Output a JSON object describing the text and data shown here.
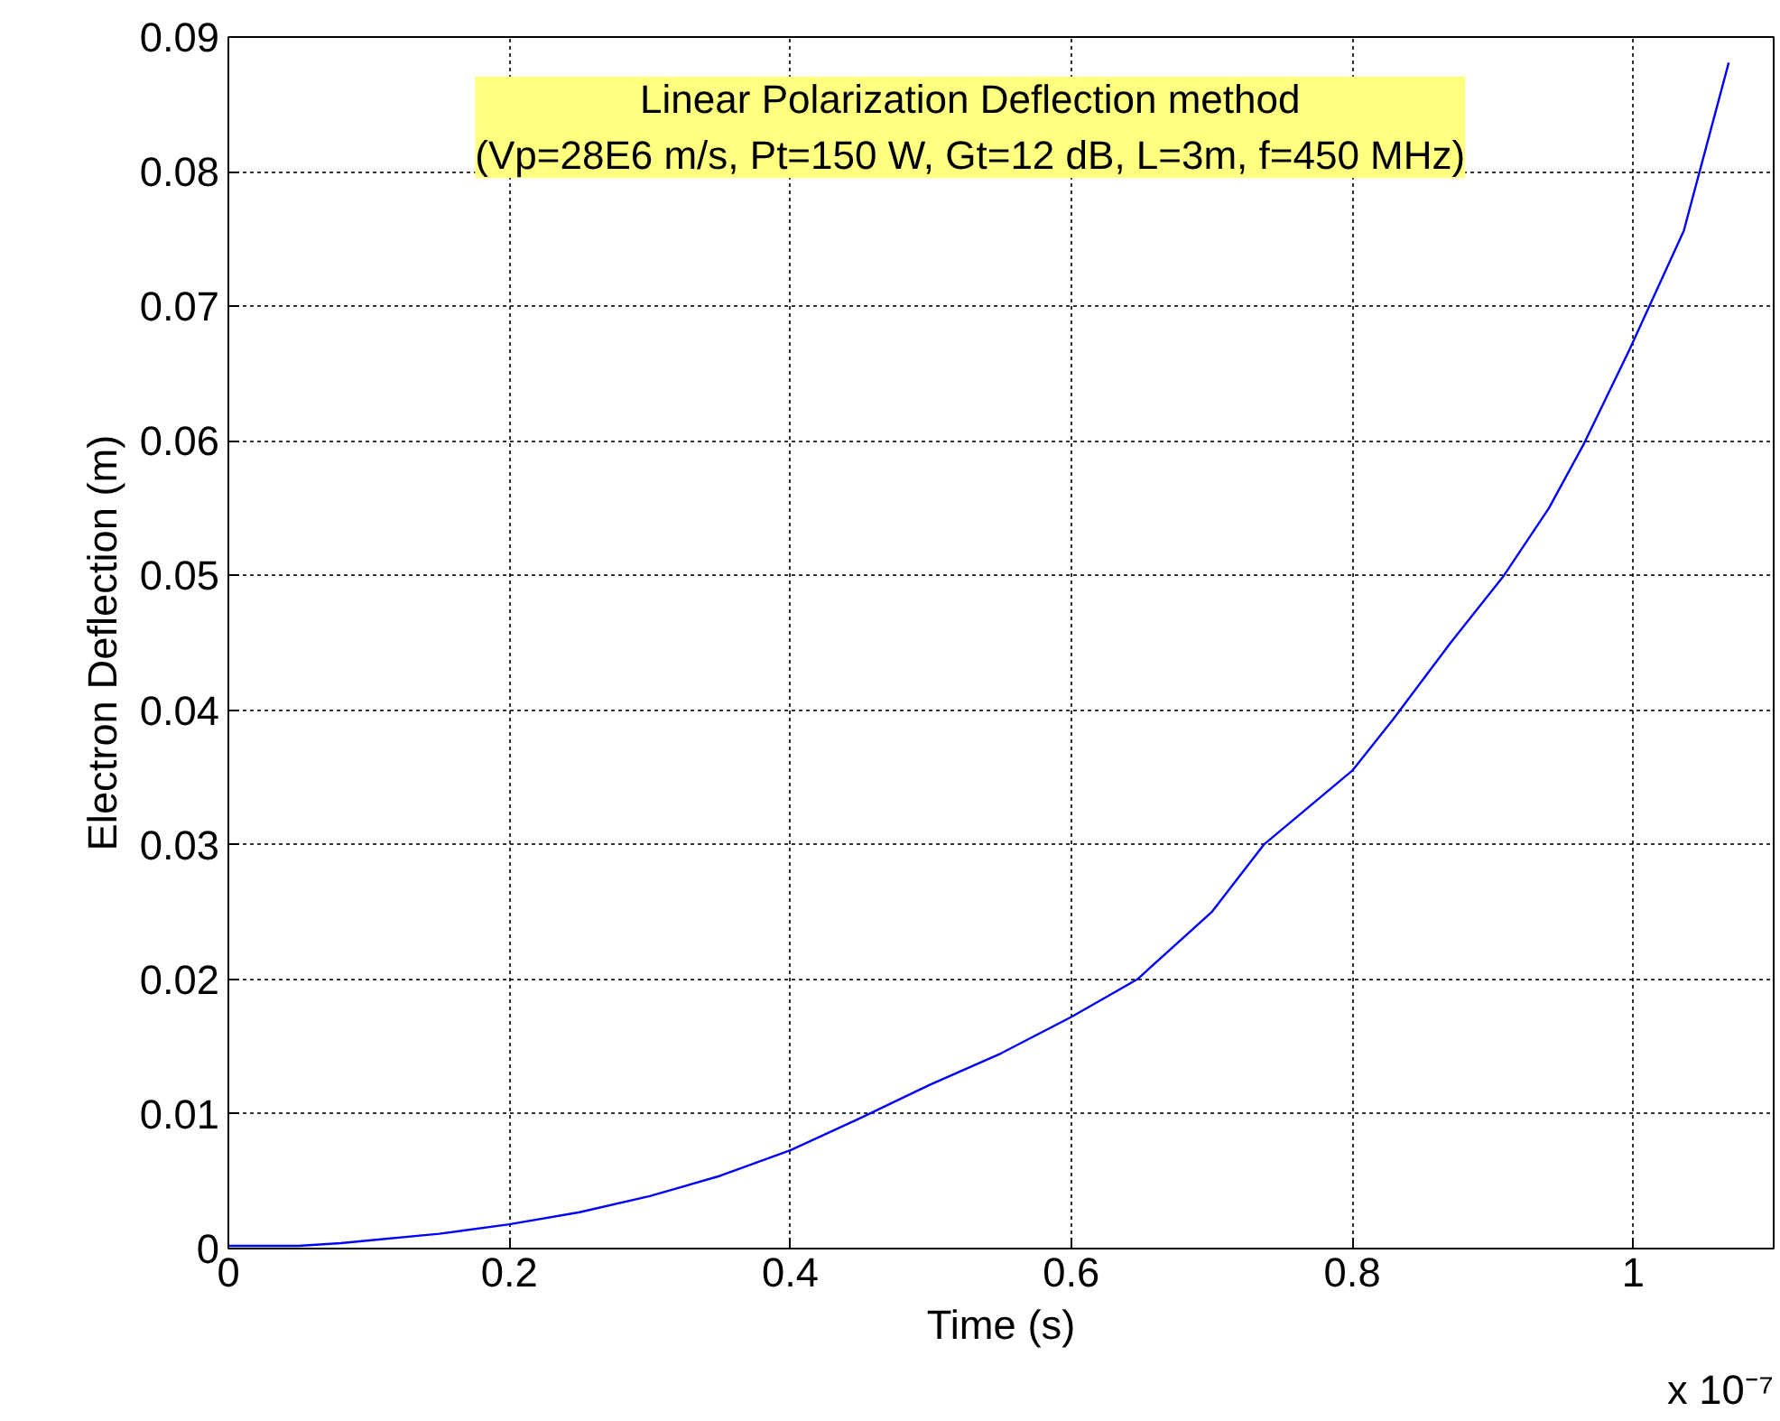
{
  "chart_data": {
    "type": "line",
    "xlabel": "Time (s)",
    "ylabel": "Electron Deflection (m)",
    "x": [
      0,
      0.05,
      0.08,
      0.1,
      0.15,
      0.2,
      0.25,
      0.3,
      0.35,
      0.4,
      0.45,
      0.5,
      0.55,
      0.6,
      0.647,
      0.7,
      0.737,
      0.8,
      0.829,
      0.87,
      0.908,
      0.94,
      0.965,
      0.997,
      1.036,
      1.068
    ],
    "series": [
      {
        "color": "#0000ff",
        "values": [
          0.0002,
          0.0002,
          0.0004,
          0.0006,
          0.0011,
          0.0018,
          0.0027,
          0.0039,
          0.0054,
          0.0073,
          0.0097,
          0.0122,
          0.0145,
          0.0172,
          0.02,
          0.025,
          0.03,
          0.0355,
          0.0393,
          0.045,
          0.05,
          0.055,
          0.0598,
          0.0667,
          0.0756,
          0.0881
        ]
      }
    ],
    "xlim": [
      0,
      1.1
    ],
    "xticks": [
      0,
      0.2,
      0.4,
      0.6,
      0.8,
      1
    ],
    "ylim": [
      0,
      0.09
    ],
    "yticks": [
      0,
      0.01,
      0.02,
      0.03,
      0.04,
      0.05,
      0.06,
      0.07,
      0.08,
      0.09
    ],
    "grid": true,
    "line_style": "solid",
    "marker": "none",
    "annotations": [
      "Linear Polarization Deflection method\n(Vp=28E6 m/s, Pt=150 W, Gt=12 dB, L=3m, f=450 MHz)",
      "x 10⁻⁷"
    ]
  }
}
